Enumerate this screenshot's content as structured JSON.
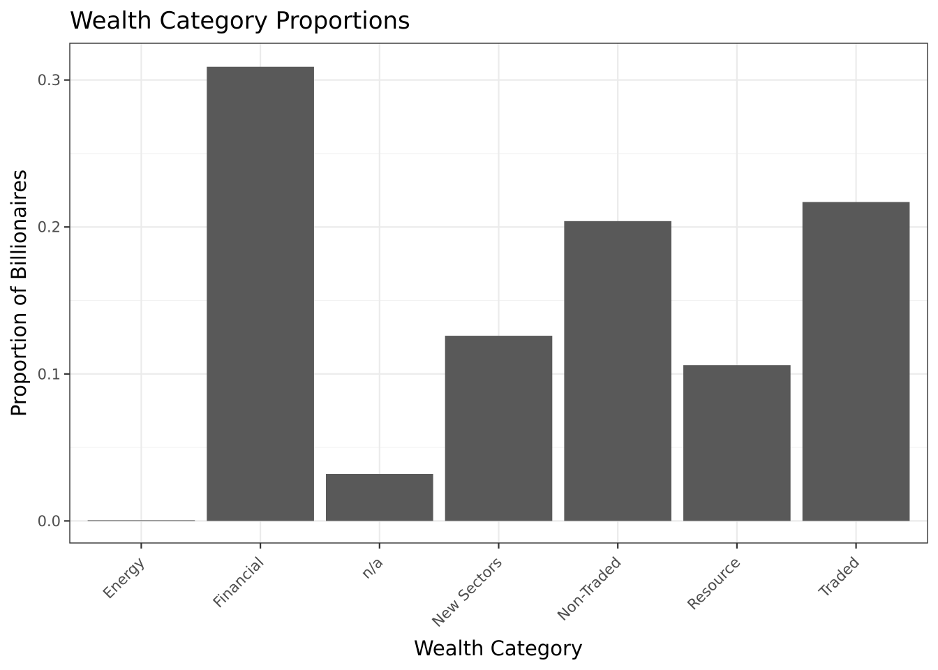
{
  "chart_data": {
    "type": "bar",
    "title": "Wealth Category Proportions",
    "xlabel": "Wealth Category",
    "ylabel": "Proportion of Billionaires",
    "categories": [
      "Energy",
      "Financial",
      "n/a",
      "New Sectors",
      "Non-Traded",
      "Resource",
      "Traded"
    ],
    "values": [
      0.0004,
      0.309,
      0.032,
      0.126,
      0.204,
      0.106,
      0.217
    ],
    "ylim": [
      -0.015,
      0.325
    ],
    "yticks": [
      0.0,
      0.1,
      0.2,
      0.3
    ],
    "ytick_labels": [
      "0.0",
      "0.1",
      "0.2",
      "0.3"
    ],
    "grid": true,
    "legend": "none",
    "bar_color": "#595959",
    "theme": "bw"
  }
}
